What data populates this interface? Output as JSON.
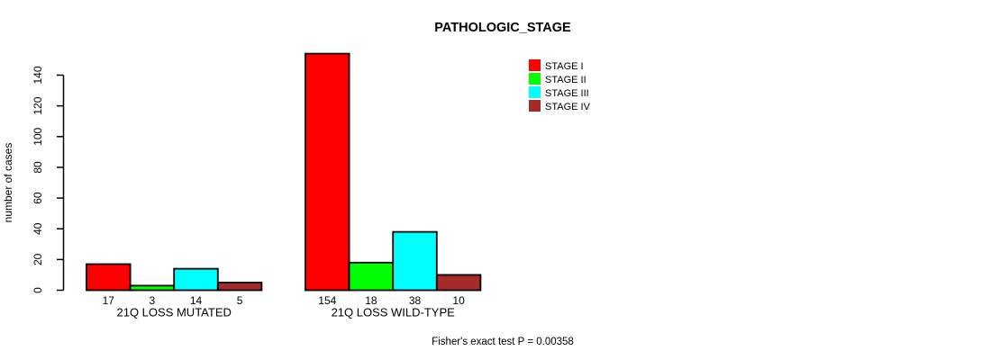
{
  "chart_data": {
    "type": "bar",
    "title": "PATHOLOGIC_STAGE",
    "ylabel": "number of cases",
    "xlabel": "",
    "categories": [
      "21Q LOSS MUTATED",
      "21Q LOSS WILD-TYPE"
    ],
    "series": [
      {
        "name": "STAGE I",
        "color": "#FF0000",
        "values": [
          17,
          154
        ]
      },
      {
        "name": "STAGE II",
        "color": "#00FF00",
        "values": [
          3,
          18
        ]
      },
      {
        "name": "STAGE III",
        "color": "#00FFFF",
        "values": [
          14,
          38
        ]
      },
      {
        "name": "STAGE IV",
        "color": "#A52A2A",
        "values": [
          5,
          10
        ]
      }
    ],
    "yticks": [
      0,
      20,
      40,
      60,
      80,
      100,
      120,
      140
    ],
    "ylim": [
      0,
      140
    ],
    "grid": false,
    "legend_position": "top-right",
    "bar_value_labels": true,
    "annotation": "Fisher's exact test P = 0.00358"
  }
}
